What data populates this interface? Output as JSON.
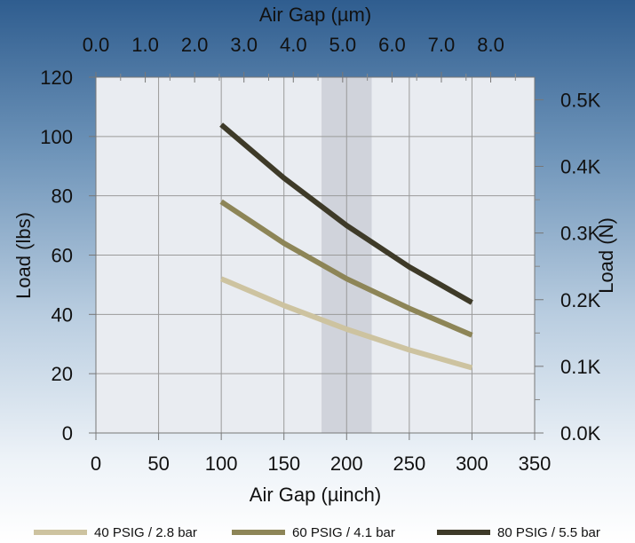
{
  "chart_data": {
    "type": "line",
    "xlabel": "Air Gap (µinch)",
    "x2label": "Air Gap (µm)",
    "ylabel": "Load (lbs)",
    "y2label": "Load (N)",
    "xlim": [
      0,
      350
    ],
    "ylim": [
      0,
      120
    ],
    "x2lim": [
      0,
      8.89
    ],
    "y2lim": [
      0,
      0.5338
    ],
    "x_ticks": [
      "0",
      "50",
      "100",
      "150",
      "200",
      "250",
      "300",
      "350"
    ],
    "x_tick_values": [
      0,
      50,
      100,
      150,
      200,
      250,
      300,
      350
    ],
    "y_ticks": [
      "0",
      "20",
      "40",
      "60",
      "80",
      "100",
      "120"
    ],
    "y_tick_values": [
      0,
      20,
      40,
      60,
      80,
      100,
      120
    ],
    "x2_ticks": [
      "0.0",
      "1.0",
      "2.0",
      "3.0",
      "4.0",
      "5.0",
      "6.0",
      "7.0",
      "8.0"
    ],
    "x2_tick_values": [
      0,
      1,
      2,
      3,
      4,
      5,
      6,
      7,
      8
    ],
    "y2_ticks": [
      "0.0K",
      "0.1K",
      "0.2K",
      "0.3K",
      "0.4K",
      "0.5K"
    ],
    "y2_tick_values": [
      0,
      0.1,
      0.2,
      0.3,
      0.4,
      0.5
    ],
    "grid": true,
    "highlight_band": [
      180,
      220
    ],
    "legend_position": "bottom",
    "series": [
      {
        "name": "40 PSIG / 2.8 bar",
        "color": "#cdc3a0",
        "x": [
          100,
          150,
          200,
          250,
          300
        ],
        "values": [
          52,
          43,
          35,
          28,
          22
        ]
      },
      {
        "name": "60 PSIG / 4.1 bar",
        "color": "#8d8557",
        "x": [
          100,
          150,
          200,
          250,
          300
        ],
        "values": [
          78,
          64,
          52,
          42,
          33
        ]
      },
      {
        "name": "80 PSIG / 5.5 bar",
        "color": "#3e3a28",
        "x": [
          100,
          150,
          200,
          250,
          300
        ],
        "values": [
          104,
          86,
          70,
          56,
          44
        ]
      }
    ]
  }
}
